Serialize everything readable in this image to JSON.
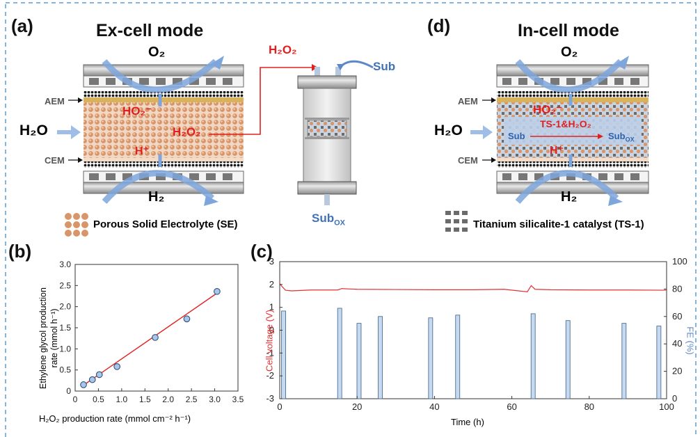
{
  "panels": {
    "a": {
      "label": "(a)",
      "title": "Ex-cell mode"
    },
    "b": {
      "label": "(b)"
    },
    "c": {
      "label": "(c)"
    },
    "d": {
      "label": "(d)",
      "title": "In-cell mode"
    }
  },
  "cell_a": {
    "o2": "O₂",
    "h2": "H₂",
    "aem": "AEM",
    "cem": "CEM",
    "h2o": "H₂O",
    "ho2": "HO₂⁻",
    "h2o2": "H₂O₂",
    "hplus": "H⁺"
  },
  "reactor": {
    "h2o2": "H₂O₂",
    "sub": "Sub",
    "sub_ox": "Sub",
    "sub_ox_sub": "OX"
  },
  "legend_a": "Porous Solid Electrolyte (SE)",
  "cell_d": {
    "o2": "O₂",
    "h2": "H₂",
    "aem": "AEM",
    "cem": "CEM",
    "h2o": "H₂O",
    "ho2": "HO₂⁻",
    "ts1": "TS-1&H₂O₂",
    "sub": "Sub",
    "sub_ox": "Sub",
    "sub_ox_sub": "OX",
    "hplus": "H⁺"
  },
  "legend_d": "Titanium silicalite-1 catalyst (TS-1)",
  "colors": {
    "frame": "#5b9bd5",
    "red": "#e02020",
    "blue_arrow": "#5b88c8",
    "bar": "#c6d9ee",
    "bar_edge": "#3a5f8a",
    "voltage": "#e03030"
  },
  "chart_b": {
    "ylabel_line1": "Ethylene glycol production",
    "ylabel_line2": "rate (mmol h⁻¹)",
    "xlabel": "H₂O₂ production rate (mmol cm⁻² h⁻¹)",
    "xticks": [
      "0",
      "0.5",
      "1.0",
      "1.5",
      "2.0",
      "2.5",
      "3.0",
      "3.5"
    ],
    "yticks": [
      "0",
      "0.5",
      "1.0",
      "1.5",
      "2.0",
      "2.5",
      "3.0"
    ]
  },
  "chart_c": {
    "ylabel_left": "Cell voltage (V)",
    "ylabel_right": "FE (%)",
    "xlabel": "Time (h)",
    "xticks": [
      "0",
      "20",
      "40",
      "60",
      "80",
      "100"
    ],
    "yticks_left": [
      "-3",
      "-2",
      "-1",
      "0",
      "1",
      "2",
      "3"
    ],
    "yticks_right": [
      "0",
      "20",
      "40",
      "60",
      "80",
      "100"
    ]
  },
  "chart_data": [
    {
      "type": "scatter",
      "title": "",
      "xlabel": "H₂O₂ production rate (mmol cm⁻² h⁻¹)",
      "ylabel": "Ethylene glycol production rate (mmol h⁻¹)",
      "xlim": [
        0,
        3.5
      ],
      "ylim": [
        0,
        3.0
      ],
      "x": [
        0.18,
        0.37,
        0.52,
        0.9,
        1.72,
        2.4,
        3.05
      ],
      "y": [
        0.15,
        0.27,
        0.39,
        0.58,
        1.27,
        1.71,
        2.36
      ],
      "fit_line": {
        "x": [
          0.18,
          3.05
        ],
        "y": [
          0.14,
          2.32
        ]
      },
      "grid": false
    },
    {
      "type": "bar",
      "title": "",
      "xlabel": "Time (h)",
      "ylabel": "Cell voltage (V)",
      "ylabel_right": "FE (%)",
      "xlim": [
        0,
        100
      ],
      "ylim": [
        -3,
        3
      ],
      "ylim_right": [
        0,
        100
      ],
      "series": [
        {
          "x": [
            1,
            15.5,
            20.5,
            26,
            39,
            46,
            65.5,
            74.5,
            89,
            98
          ],
          "values": [
            64,
            66,
            55,
            60,
            59,
            61,
            62,
            57,
            55,
            53
          ]
        },
        {
          "type": "line",
          "x": [
            0,
            0.4,
            1.5,
            3,
            8,
            15,
            16,
            20,
            30,
            40,
            50,
            58,
            64,
            65,
            66,
            70,
            80,
            90,
            100
          ],
          "values": [
            2.05,
            1.95,
            1.75,
            1.72,
            1.76,
            1.76,
            1.82,
            1.79,
            1.78,
            1.77,
            1.77,
            1.79,
            1.68,
            1.95,
            1.79,
            1.77,
            1.76,
            1.76,
            1.75
          ]
        }
      ],
      "grid": false
    }
  ]
}
